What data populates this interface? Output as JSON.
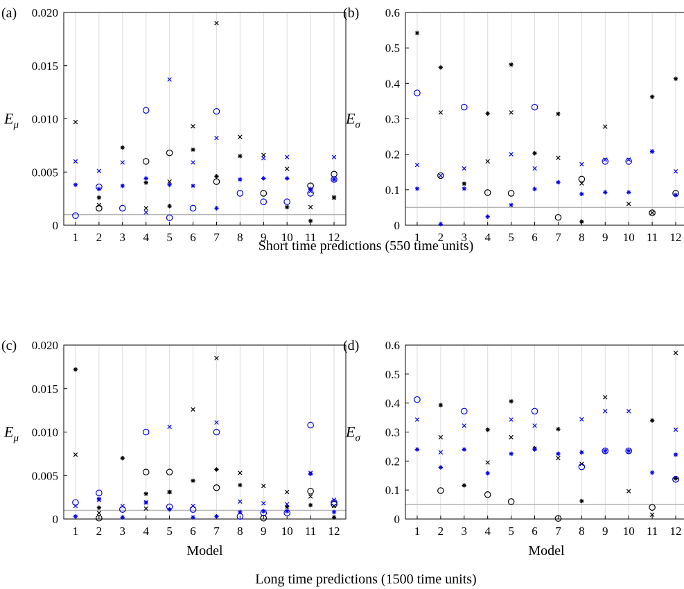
{
  "colors": {
    "black": "#000000",
    "blue": "#0000ee",
    "reference": "#b4b4b4",
    "grid": "#dcdcdc"
  },
  "captions": {
    "top": "Short time predictions (550 time units)",
    "bottom": "Long time predictions (1500 time units)"
  },
  "chart_data": [
    {
      "panel": "(a)",
      "type": "scatter",
      "ylabel_main": "E",
      "ylabel_sub": "μ",
      "xlabel": "",
      "categories": [
        1,
        2,
        3,
        4,
        5,
        6,
        7,
        8,
        9,
        10,
        11,
        12
      ],
      "yticks": [
        "0",
        "0.005",
        "0.010",
        "0.015",
        "0.020"
      ],
      "ylim": [
        0,
        0.02
      ],
      "reference_line": 0.001,
      "series": [
        {
          "marker": "circle",
          "color": "black",
          "values": [
            null,
            0.0016,
            null,
            0.006,
            0.0068,
            null,
            0.0041,
            null,
            0.003,
            null,
            0.0037,
            0.0048
          ]
        },
        {
          "marker": "x",
          "color": "black",
          "values": [
            0.0097,
            0.0019,
            null,
            0.0016,
            0.0041,
            0.0093,
            0.019,
            0.0083,
            0.0066,
            0.0053,
            0.0017,
            0.0026
          ]
        },
        {
          "marker": "asterisk",
          "color": "black",
          "values": [
            null,
            0.0026,
            0.0073,
            0.004,
            0.0018,
            0.0071,
            0.0046,
            0.0065,
            null,
            0.0017,
            0.0004,
            0.0026
          ]
        },
        {
          "marker": "circle",
          "color": "blue",
          "values": [
            0.0009,
            0.0036,
            0.0016,
            0.0108,
            0.0007,
            0.0016,
            0.0107,
            0.003,
            0.0022,
            0.0022,
            0.003,
            0.0043
          ]
        },
        {
          "marker": "x",
          "color": "blue",
          "values": [
            0.006,
            0.0051,
            0.0059,
            0.0012,
            0.0137,
            0.0059,
            0.0082,
            null,
            0.0063,
            0.0064,
            0.0032,
            0.0064
          ]
        },
        {
          "marker": "asterisk",
          "color": "blue",
          "values": [
            0.0038,
            0.0034,
            0.0037,
            0.0044,
            0.0038,
            0.0037,
            0.0016,
            0.0043,
            0.0044,
            0.0044,
            0.0034,
            0.0043
          ]
        }
      ]
    },
    {
      "panel": "(b)",
      "type": "scatter",
      "ylabel_main": "E",
      "ylabel_sub": "σ",
      "xlabel": "",
      "categories": [
        1,
        2,
        3,
        4,
        5,
        6,
        7,
        8,
        9,
        10,
        11,
        12
      ],
      "yticks": [
        "0",
        "0.1",
        "0.2",
        "0.3",
        "0.4",
        "0.5",
        "0.6"
      ],
      "ylim": [
        0,
        0.6
      ],
      "reference_line": 0.05,
      "series": [
        {
          "marker": "circle",
          "color": "black",
          "values": [
            null,
            0.14,
            null,
            0.092,
            0.09,
            null,
            0.022,
            0.13,
            null,
            null,
            0.035,
            0.09
          ]
        },
        {
          "marker": "x",
          "color": "black",
          "values": [
            null,
            0.318,
            null,
            0.18,
            0.318,
            null,
            0.19,
            0.118,
            0.278,
            0.06,
            0.035,
            null
          ]
        },
        {
          "marker": "asterisk",
          "color": "black",
          "values": [
            0.542,
            0.445,
            0.117,
            0.315,
            0.453,
            0.203,
            0.314,
            0.01,
            null,
            null,
            0.362,
            0.413
          ]
        },
        {
          "marker": "circle",
          "color": "blue",
          "values": [
            0.373,
            null,
            0.333,
            null,
            null,
            0.333,
            null,
            null,
            0.18,
            0.18,
            null,
            null
          ]
        },
        {
          "marker": "x",
          "color": "blue",
          "values": [
            0.17,
            0.14,
            0.16,
            null,
            0.2,
            0.16,
            null,
            0.172,
            0.185,
            0.185,
            0.208,
            0.152
          ]
        },
        {
          "marker": "asterisk",
          "color": "blue",
          "values": [
            0.103,
            0.003,
            0.103,
            0.024,
            0.057,
            0.102,
            0.121,
            0.088,
            0.093,
            0.093,
            0.208,
            0.085
          ]
        }
      ]
    },
    {
      "panel": "(c)",
      "type": "scatter",
      "ylabel_main": "E",
      "ylabel_sub": "μ",
      "xlabel": "Model",
      "categories": [
        1,
        2,
        3,
        4,
        5,
        6,
        7,
        8,
        9,
        10,
        11,
        12
      ],
      "yticks": [
        "0",
        "0.005",
        "0.010",
        "0.015",
        "0.020"
      ],
      "ylim": [
        0,
        0.02
      ],
      "reference_line": 0.001,
      "series": [
        {
          "marker": "circle",
          "color": "black",
          "values": [
            null,
            0.0001,
            null,
            0.0054,
            0.0054,
            null,
            0.0036,
            null,
            0.0001,
            null,
            0.0032,
            0.0017
          ]
        },
        {
          "marker": "x",
          "color": "black",
          "values": [
            0.0074,
            0.0007,
            null,
            0.0012,
            0.0031,
            0.0126,
            0.0185,
            0.0053,
            0.0038,
            0.0031,
            0.0026,
            0.0015
          ]
        },
        {
          "marker": "asterisk",
          "color": "black",
          "values": [
            0.0172,
            0.0013,
            0.007,
            0.0029,
            0.0031,
            0.0044,
            0.0057,
            0.0039,
            null,
            0.0014,
            0.0016,
            0.0002
          ]
        },
        {
          "marker": "circle",
          "color": "blue",
          "values": [
            0.0019,
            0.003,
            0.0011,
            0.01,
            0.0014,
            0.0011,
            0.01,
            0.0003,
            0.0007,
            0.0007,
            0.0108,
            0.0019
          ]
        },
        {
          "marker": "x",
          "color": "blue",
          "values": [
            0.0015,
            0.0022,
            0.0015,
            0.0019,
            0.0106,
            0.0015,
            0.0111,
            0.002,
            0.0018,
            0.0017,
            0.0053,
            0.0022
          ]
        },
        {
          "marker": "asterisk",
          "color": "blue",
          "values": [
            0.0003,
            0.0023,
            0.0002,
            0.0019,
            0.0011,
            0.0002,
            0.0003,
            0.0008,
            0.0009,
            0.0009,
            0.0052,
            0.0008
          ]
        }
      ]
    },
    {
      "panel": "(d)",
      "type": "scatter",
      "ylabel_main": "E",
      "ylabel_sub": "σ",
      "xlabel": "Model",
      "categories": [
        1,
        2,
        3,
        4,
        5,
        6,
        7,
        8,
        9,
        10,
        11,
        12
      ],
      "yticks": [
        "0",
        "0.1",
        "0.2",
        "0.3",
        "0.4",
        "0.5",
        "0.6"
      ],
      "ylim": [
        0,
        0.6
      ],
      "reference_line": 0.05,
      "series": [
        {
          "marker": "circle",
          "color": "black",
          "values": [
            null,
            0.098,
            null,
            0.084,
            0.06,
            null,
            0.002,
            null,
            null,
            null,
            0.04,
            0.137
          ]
        },
        {
          "marker": "x",
          "color": "black",
          "values": [
            null,
            0.282,
            null,
            0.195,
            0.282,
            null,
            0.21,
            0.19,
            0.42,
            0.096,
            0.015,
            0.573
          ]
        },
        {
          "marker": "asterisk",
          "color": "black",
          "values": [
            null,
            0.393,
            0.116,
            0.308,
            0.406,
            0.244,
            0.31,
            0.062,
            null,
            null,
            0.34,
            0.14
          ]
        },
        {
          "marker": "circle",
          "color": "blue",
          "values": [
            0.412,
            null,
            0.372,
            null,
            null,
            0.372,
            null,
            0.18,
            0.235,
            0.235,
            null,
            0.137
          ]
        },
        {
          "marker": "x",
          "color": "blue",
          "values": [
            0.343,
            0.23,
            0.322,
            null,
            0.343,
            0.322,
            null,
            0.344,
            0.372,
            0.372,
            null,
            0.308
          ]
        },
        {
          "marker": "asterisk",
          "color": "blue",
          "values": [
            0.24,
            0.178,
            0.24,
            0.158,
            0.225,
            0.24,
            0.225,
            0.23,
            0.235,
            0.235,
            0.16,
            0.222
          ]
        }
      ]
    }
  ]
}
